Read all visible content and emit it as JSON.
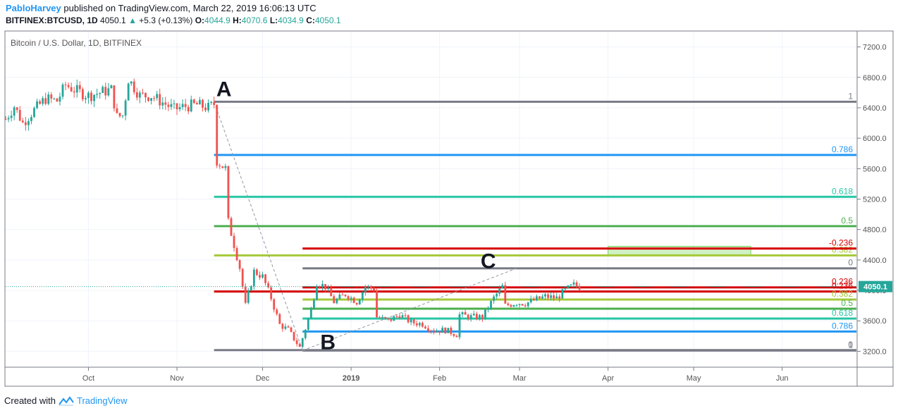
{
  "header": {
    "user": "PabloHarvey",
    "published": "published on TradingView.com, March 22, 2019 16:06:13 UTC",
    "symbol": "BITFINEX:BTCUSD, 1D",
    "last": "4050.1",
    "change_arrow": "▲",
    "change": "+5.3 (+0.13%)",
    "o_label": "O:",
    "o": "4044.9",
    "h_label": "H:",
    "h": "4070.6",
    "l_label": "L:",
    "l": "4034.9",
    "c_label": "C:",
    "c": "4050.1"
  },
  "footer": {
    "created_with": "Created with",
    "brand": "TradingView",
    "logo_icon": "tradingview-logo-icon"
  },
  "colors": {
    "up": "#26a69a",
    "down": "#ef5350",
    "grid": "#f0f3fa",
    "fib_red": "#d50000",
    "fib_gray": "#787b86"
  },
  "chart_data": {
    "type": "candlestick",
    "title": "Bitcoin / U.S. Dollar, 1D, BITFINEX",
    "x_tick_labels": [
      "Oct",
      "Nov",
      "Dec",
      "2019",
      "Feb",
      "Mar",
      "Apr",
      "May",
      "Jun"
    ],
    "x_tick_dates": [
      "2018-10-01",
      "2018-11-01",
      "2018-12-01",
      "2019-01-01",
      "2019-02-01",
      "2019-03-01",
      "2019-04-01",
      "2019-05-01",
      "2019-06-01"
    ],
    "x_range": [
      "2018-09-02",
      "2019-06-27"
    ],
    "y_ticks": [
      3200,
      3600,
      4000,
      4400,
      4800,
      5200,
      5600,
      6000,
      6400,
      6800,
      7200
    ],
    "y_tick_labels": [
      "3200.0",
      "3600.0",
      "4000.0",
      "4400.0",
      "4800.0",
      "5200.0",
      "5600.0",
      "6000.0",
      "6400.0",
      "6800.0",
      "7200.0"
    ],
    "ylim": [
      3000,
      7400
    ],
    "grid": true,
    "last_price": 4050.1,
    "last_price_label": "4050.1",
    "price_path": [
      [
        "2018-09-02",
        6250
      ],
      [
        "2018-09-05",
        6420
      ],
      [
        "2018-09-08",
        6200
      ],
      [
        "2018-09-12",
        6370
      ],
      [
        "2018-09-16",
        6520
      ],
      [
        "2018-09-20",
        6490
      ],
      [
        "2018-09-23",
        6700
      ],
      [
        "2018-09-27",
        6620
      ],
      [
        "2018-10-01",
        6560
      ],
      [
        "2018-10-05",
        6600
      ],
      [
        "2018-10-09",
        6640
      ],
      [
        "2018-10-11",
        6280
      ],
      [
        "2018-10-13",
        6300
      ],
      [
        "2018-10-15",
        6780
      ],
      [
        "2018-10-19",
        6560
      ],
      [
        "2018-10-23",
        6560
      ],
      [
        "2018-10-27",
        6470
      ],
      [
        "2018-10-31",
        6380
      ],
      [
        "2018-11-04",
        6420
      ],
      [
        "2018-11-08",
        6440
      ],
      [
        "2018-11-12",
        6400
      ],
      [
        "2018-11-14",
        6450
      ],
      [
        "2018-11-15",
        5700
      ],
      [
        "2018-11-18",
        5600
      ],
      [
        "2018-11-19",
        4900
      ],
      [
        "2018-11-21",
        4600
      ],
      [
        "2018-11-23",
        4300
      ],
      [
        "2018-11-25",
        3800
      ],
      [
        "2018-11-28",
        4250
      ],
      [
        "2018-12-01",
        4180
      ],
      [
        "2018-12-04",
        3900
      ],
      [
        "2018-12-07",
        3550
      ],
      [
        "2018-12-10",
        3480
      ],
      [
        "2018-12-14",
        3250
      ],
      [
        "2018-12-16",
        3500
      ],
      [
        "2018-12-18",
        3750
      ],
      [
        "2018-12-20",
        4100
      ],
      [
        "2018-12-23",
        4050
      ],
      [
        "2018-12-26",
        3850
      ],
      [
        "2018-12-30",
        3950
      ],
      [
        "2019-01-03",
        3850
      ],
      [
        "2019-01-06",
        4050
      ],
      [
        "2019-01-09",
        4020
      ],
      [
        "2019-01-10",
        3650
      ],
      [
        "2019-01-14",
        3600
      ],
      [
        "2019-01-18",
        3680
      ],
      [
        "2019-01-22",
        3580
      ],
      [
        "2019-01-26",
        3560
      ],
      [
        "2019-01-30",
        3470
      ],
      [
        "2019-02-03",
        3480
      ],
      [
        "2019-02-07",
        3420
      ],
      [
        "2019-02-08",
        3680
      ],
      [
        "2019-02-12",
        3650
      ],
      [
        "2019-02-16",
        3650
      ],
      [
        "2019-02-20",
        3900
      ],
      [
        "2019-02-23",
        4050
      ],
      [
        "2019-02-24",
        3800
      ],
      [
        "2019-02-28",
        3840
      ],
      [
        "2019-03-03",
        3830
      ],
      [
        "2019-03-06",
        3870
      ],
      [
        "2019-03-10",
        3920
      ],
      [
        "2019-03-14",
        3900
      ],
      [
        "2019-03-17",
        4000
      ],
      [
        "2019-03-20",
        4070
      ],
      [
        "2019-03-22",
        4050
      ]
    ],
    "swing_labels": [
      {
        "text": "A",
        "date": "2018-11-14",
        "price": 6480
      },
      {
        "text": "B",
        "date": "2018-12-15",
        "price": 3210
      },
      {
        "text": "C",
        "date": "2019-02-23",
        "price": 4290
      }
    ],
    "fib_retracement_1": {
      "from_date": "2018-11-14",
      "to_date": "2019-06-27",
      "levels": [
        {
          "ratio": 1,
          "label": "1",
          "price": 6480,
          "color": "#787b86"
        },
        {
          "ratio": 0.786,
          "label": "0.786",
          "price": 5780,
          "color": "#2196f3"
        },
        {
          "ratio": 0.618,
          "label": "0.618",
          "price": 5230,
          "color": "#26c6a6"
        },
        {
          "ratio": 0.5,
          "label": "0.5",
          "price": 4845,
          "color": "#4caf50"
        },
        {
          "ratio": 0.382,
          "label": "0.382",
          "price": 4460,
          "color": "#a5c93a"
        },
        {
          "ratio": 0.236,
          "label": "0.236",
          "price": 3985,
          "color": "#d50000"
        },
        {
          "ratio": 0,
          "label": "0",
          "price": 3215,
          "color": "#787b86"
        }
      ]
    },
    "fib_retracement_2": {
      "from_date": "2018-12-15",
      "to_date": "2019-06-27",
      "levels": [
        {
          "ratio": -0.236,
          "label": "-0.236",
          "price": 4550,
          "color": "#d50000"
        },
        {
          "ratio": 0,
          "label": "0",
          "price": 4290,
          "color": "#787b86"
        },
        {
          "ratio": 0.236,
          "label": "0.236",
          "price": 4040,
          "color": "#d50000"
        },
        {
          "ratio": 0.382,
          "label": "0.382",
          "price": 3880,
          "color": "#a5c93a"
        },
        {
          "ratio": 0.5,
          "label": "0.5",
          "price": 3760,
          "color": "#4caf50"
        },
        {
          "ratio": 0.618,
          "label": "0.618",
          "price": 3630,
          "color": "#26c6a6"
        },
        {
          "ratio": 0.786,
          "label": "0.786",
          "price": 3460,
          "color": "#2196f3"
        },
        {
          "ratio": 1,
          "label": "1",
          "price": 3210,
          "color": "#787b86"
        }
      ]
    },
    "target_box": {
      "from_date": "2019-04-01",
      "to_date": "2019-05-21",
      "low": 4460,
      "high": 4580,
      "color": "#76d35a"
    },
    "trend_lines": [
      {
        "from_date": "2018-11-14",
        "from_price": 6480,
        "to_date": "2018-12-15",
        "to_price": 3210
      },
      {
        "from_date": "2018-12-15",
        "from_price": 3210,
        "to_date": "2019-02-28",
        "to_price": 4290
      }
    ]
  }
}
